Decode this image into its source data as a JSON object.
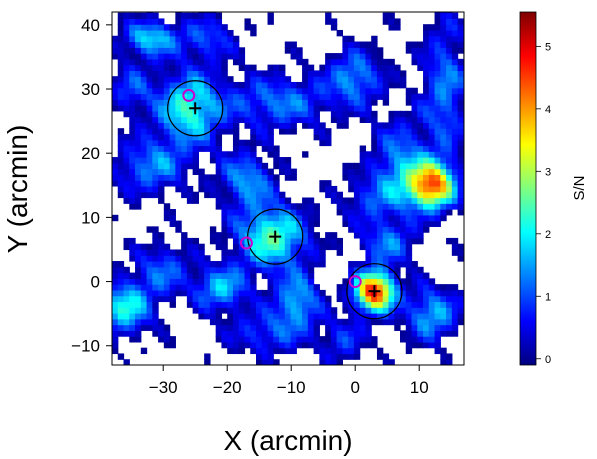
{
  "chart_data": {
    "type": "heatmap",
    "title": "",
    "xlabel": "X (arcmin)",
    "ylabel": "Y (arcmin)",
    "xlim": [
      -38,
      17
    ],
    "ylim": [
      -13,
      42
    ],
    "x_ticks": [
      {
        "value": -30,
        "label": "−30"
      },
      {
        "value": -20,
        "label": "−20"
      },
      {
        "value": -10,
        "label": "−10"
      },
      {
        "value": 0,
        "label": "0"
      },
      {
        "value": 10,
        "label": "10"
      }
    ],
    "y_ticks": [
      {
        "value": -10,
        "label": "−10"
      },
      {
        "value": 0,
        "label": "0"
      },
      {
        "value": 10,
        "label": "10"
      },
      {
        "value": 20,
        "label": "20"
      },
      {
        "value": 30,
        "label": "30"
      },
      {
        "value": 40,
        "label": "40"
      }
    ],
    "colorbar": {
      "label": "S/N",
      "range": [
        -0.1,
        5.55
      ],
      "ticks": [
        {
          "value": 0,
          "label": "0"
        },
        {
          "value": 1,
          "label": "1"
        },
        {
          "value": 2,
          "label": "2"
        },
        {
          "value": 3,
          "label": "3"
        },
        {
          "value": 4,
          "label": "4"
        },
        {
          "value": 5,
          "label": "5"
        }
      ],
      "colormap": [
        "#00007f",
        "#0000ff",
        "#007fff",
        "#00ffff",
        "#7fff7f",
        "#ffff00",
        "#ff7f00",
        "#ff0000",
        "#7f0000"
      ]
    },
    "threshold": 0,
    "sources": [
      {
        "x": -26,
        "y": 27,
        "peak": 2.6,
        "sx": 3.5,
        "sy": 4
      },
      {
        "x": -13,
        "y": 7,
        "peak": 2.8,
        "sx": 4,
        "sy": 3.5
      },
      {
        "x": 3,
        "y": -1.5,
        "peak": 5.2,
        "sx": 2.2,
        "sy": 2.2
      },
      {
        "x": 12,
        "y": 15,
        "peak": 4.5,
        "sx": 2.5,
        "sy": 2.5
      },
      {
        "x": -32,
        "y": 38,
        "peak": 2.2,
        "sx": 3,
        "sy": 2
      },
      {
        "x": -36,
        "y": -4,
        "peak": 2.4,
        "sx": 3,
        "sy": 3
      },
      {
        "x": -9,
        "y": -3,
        "peak": 2.0,
        "sx": 2.5,
        "sy": 3
      },
      {
        "x": -21,
        "y": -1,
        "peak": 2.0,
        "sx": 3,
        "sy": 2.5
      },
      {
        "x": -12,
        "y": 28,
        "peak": 1.6,
        "sx": 6,
        "sy": 3
      },
      {
        "x": 0,
        "y": 32,
        "peak": 1.8,
        "sx": 3,
        "sy": 3
      },
      {
        "x": 14,
        "y": 30,
        "peak": 1.6,
        "sx": 2.5,
        "sy": 8
      },
      {
        "x": 7,
        "y": 18,
        "peak": 1.8,
        "sx": 3,
        "sy": 5
      },
      {
        "x": -32,
        "y": 18,
        "peak": 1.7,
        "sx": 4,
        "sy": 3
      },
      {
        "x": -17,
        "y": 16,
        "peak": 1.8,
        "sx": 3,
        "sy": 3
      },
      {
        "x": -30,
        "y": 2,
        "peak": 1.4,
        "sx": 3,
        "sy": 3
      },
      {
        "x": 12,
        "y": -5,
        "peak": 2.0,
        "sx": 3,
        "sy": 3
      },
      {
        "x": -14,
        "y": -8,
        "peak": 1.3,
        "sx": 4,
        "sy": 2.5
      },
      {
        "x": 5,
        "y": 6,
        "peak": 1.5,
        "sx": 3,
        "sy": 2.5
      },
      {
        "x": -23,
        "y": 38,
        "peak": 1.3,
        "sx": 3,
        "sy": 2.5
      },
      {
        "x": -2,
        "y": -9,
        "peak": 1.2,
        "sx": 2.5,
        "sy": 2.5
      },
      {
        "x": -35,
        "y": 30,
        "peak": 1.2,
        "sx": 2.5,
        "sy": 3
      },
      {
        "x": 2,
        "y": 13,
        "peak": 1.1,
        "sx": 3,
        "sy": 2.5
      }
    ],
    "crosses": [
      {
        "x": -25,
        "y": 27
      },
      {
        "x": -12.5,
        "y": 7
      },
      {
        "x": 3,
        "y": -1.5
      }
    ],
    "magenta_circles": [
      {
        "x": -26,
        "y": 29
      },
      {
        "x": -17,
        "y": 6
      },
      {
        "x": 0,
        "y": 0
      }
    ],
    "circles": [
      {
        "x": -25,
        "y": 27,
        "r": 4.3
      },
      {
        "x": -12.5,
        "y": 7,
        "r": 4.3
      },
      {
        "x": 3,
        "y": -1.5,
        "r": 4.3
      }
    ],
    "grid": false,
    "legend": "none"
  }
}
